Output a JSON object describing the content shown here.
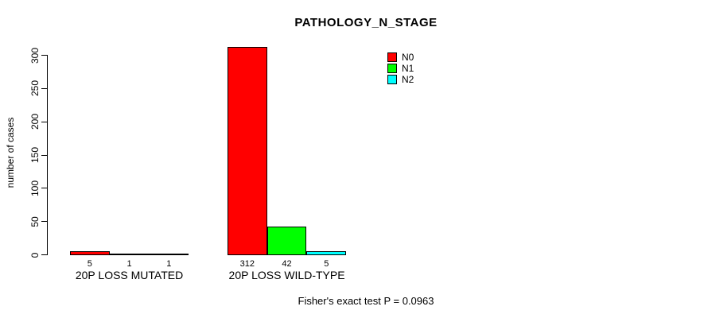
{
  "chart_data": {
    "type": "bar",
    "title": "PATHOLOGY_N_STAGE",
    "ylabel": "number of cases",
    "xlabel": "",
    "ylim": [
      0,
      300
    ],
    "yticks": [
      0,
      50,
      100,
      150,
      200,
      250,
      300
    ],
    "categories": [
      "20P LOSS MUTATED",
      "20P LOSS WILD-TYPE"
    ],
    "series": [
      {
        "name": "N0",
        "color": "#ff0000",
        "values": [
          5,
          312
        ]
      },
      {
        "name": "N1",
        "color": "#00ff00",
        "values": [
          1,
          42
        ]
      },
      {
        "name": "N2",
        "color": "#00ffff",
        "values": [
          1,
          5
        ]
      }
    ],
    "bar_value_labels": [
      [
        "5",
        "1",
        "1"
      ],
      [
        "312",
        "42",
        "5"
      ]
    ],
    "legend_position": "top-right",
    "grid": false,
    "background": "#ffffff",
    "footnote": "Fisher's exact test P = 0.0963"
  }
}
